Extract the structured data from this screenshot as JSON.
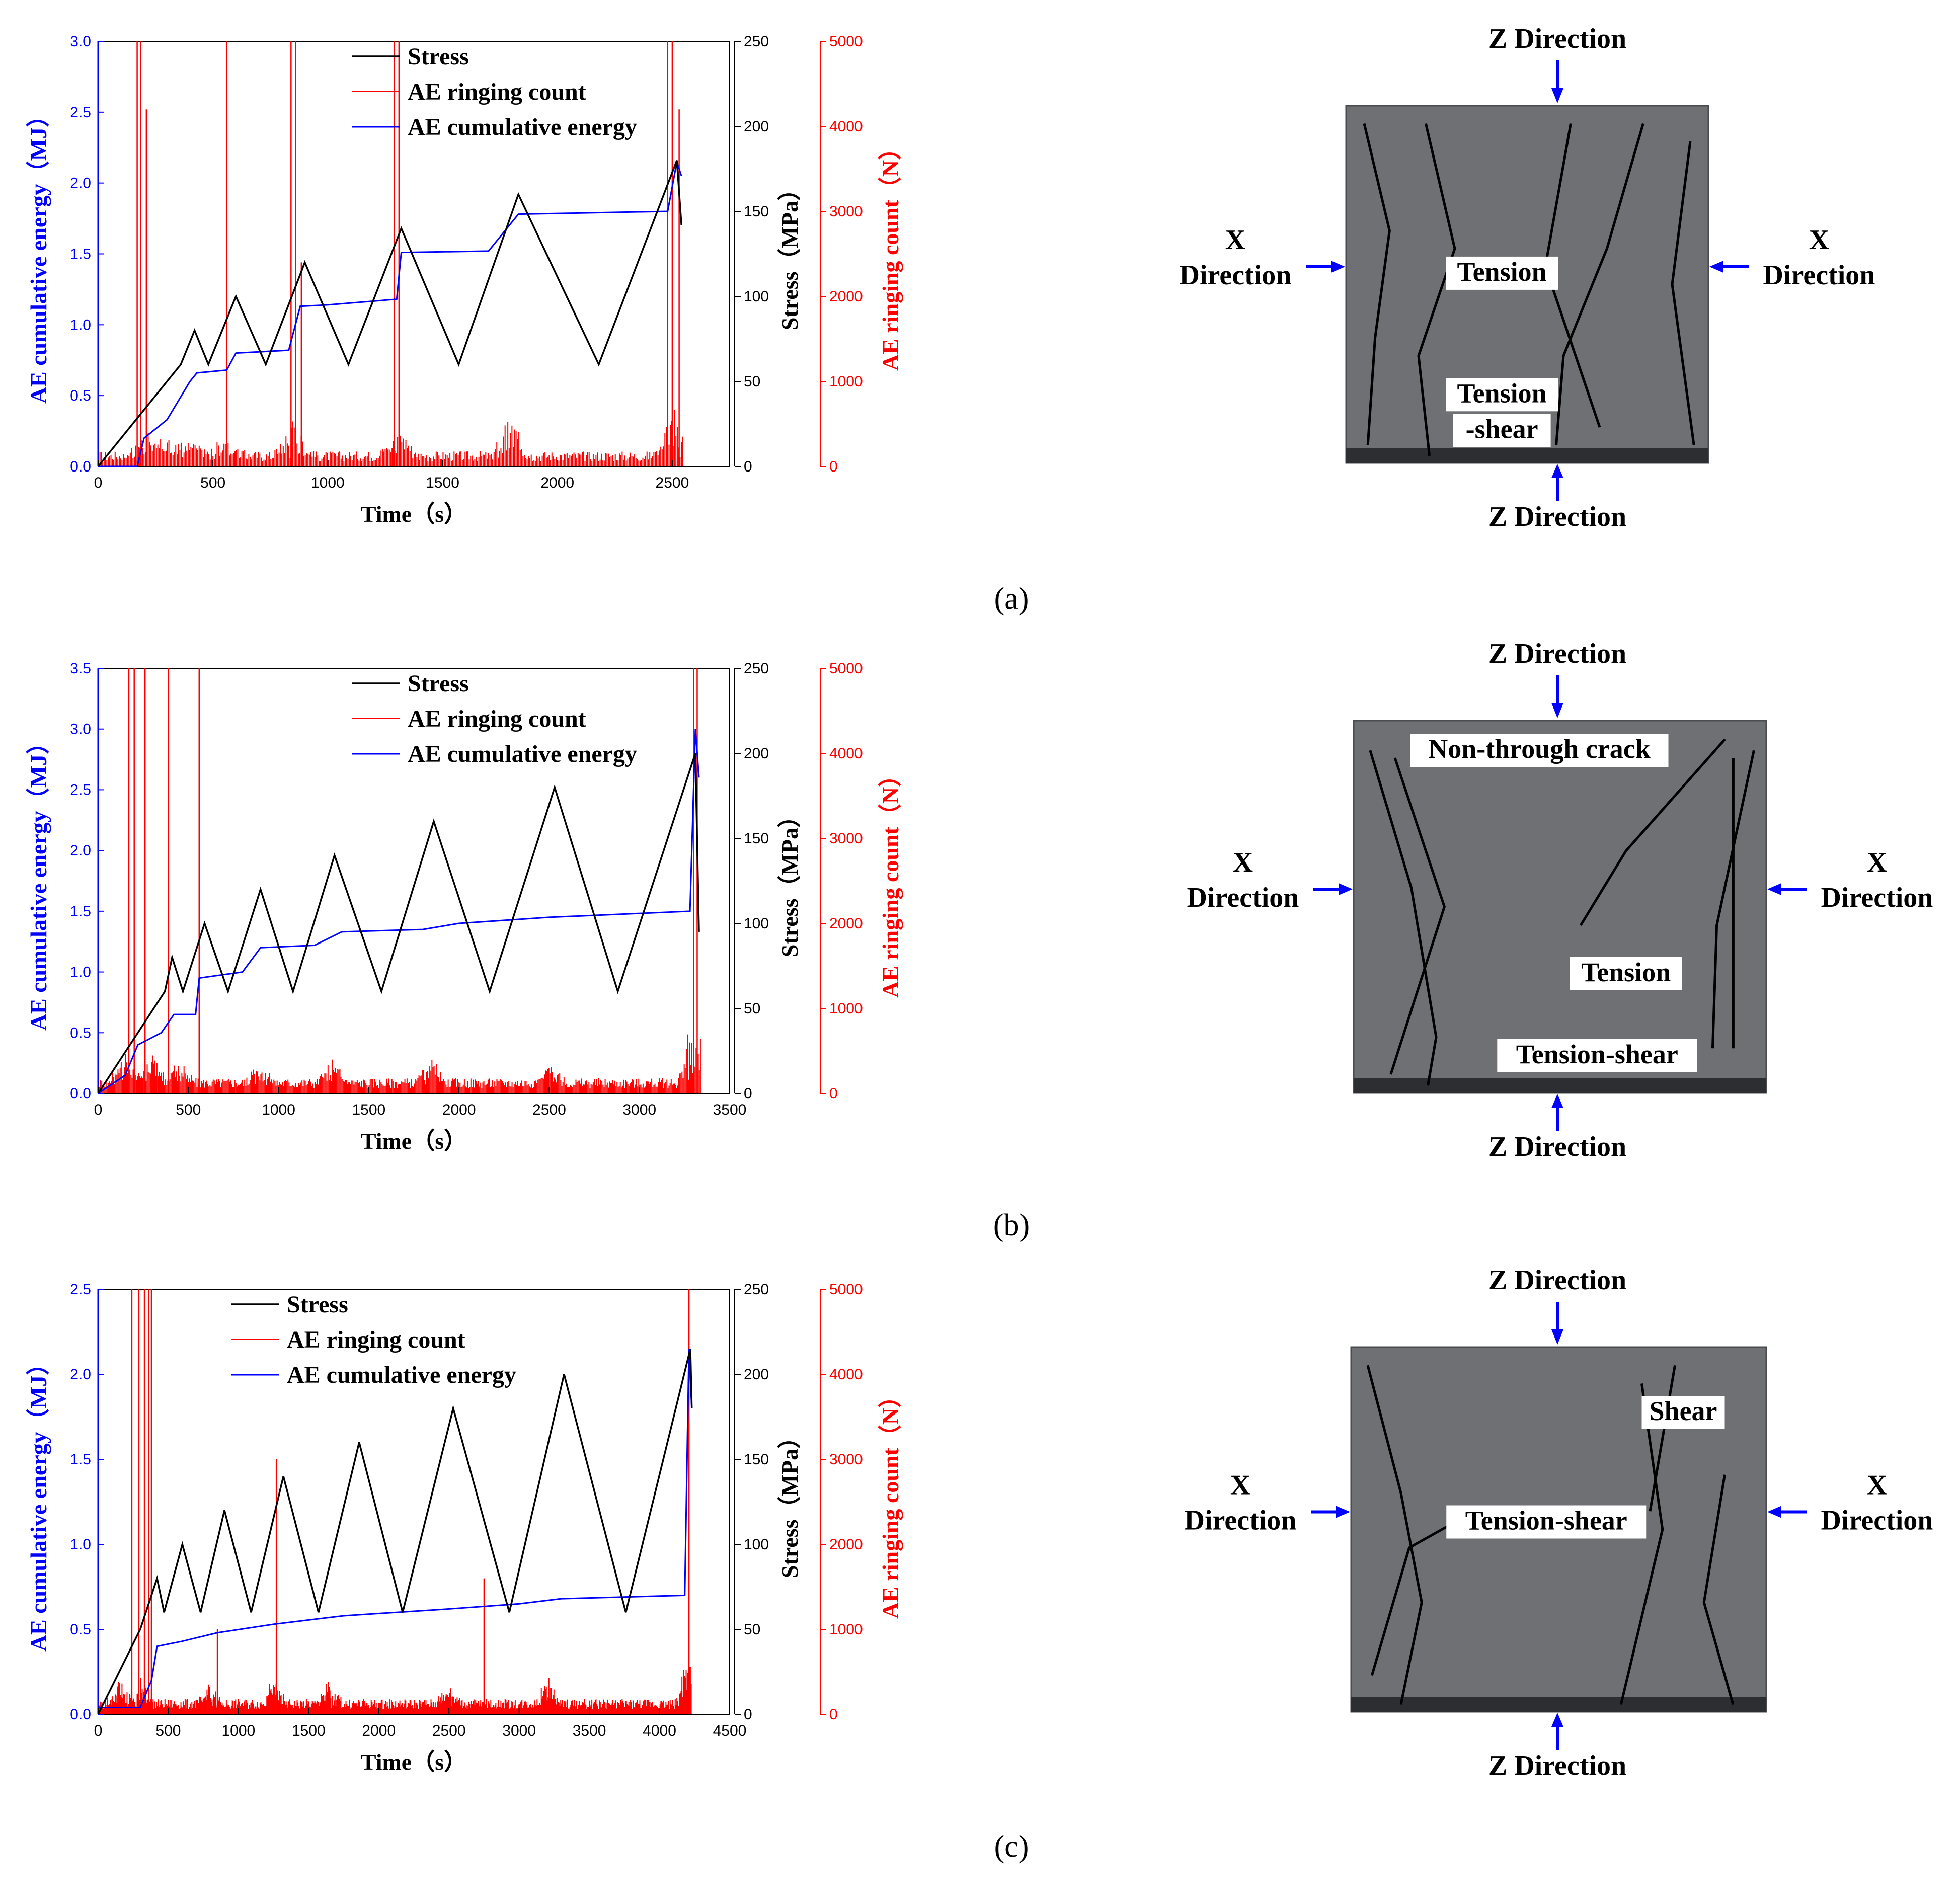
{
  "chart_data": [
    {
      "panel": "(a)",
      "type": "line",
      "xlabel": "Time（s）",
      "ylabel_left": "AE cumulative energy（MJ）",
      "ylabel_right1": "Stress（MPa）",
      "ylabel_right2": "AE ringing count（N）",
      "xlim": [
        0,
        2750
      ],
      "xticks": [
        0,
        500,
        1000,
        1500,
        2000,
        2500
      ],
      "ylim_left": [
        0,
        3.0
      ],
      "yticks_left": [
        0.0,
        0.5,
        1.0,
        1.5,
        2.0,
        2.5,
        3.0
      ],
      "ylim_right1": [
        0,
        250
      ],
      "yticks_right1": [
        0,
        50,
        100,
        150,
        200,
        250
      ],
      "ylim_right2": [
        0,
        5000
      ],
      "yticks_right2": [
        0,
        1000,
        2000,
        3000,
        4000,
        5000
      ],
      "legend": [
        "Stress",
        "AE ringing count",
        "AE cumulative energy"
      ],
      "series": [
        {
          "name": "Stress",
          "color": "#000000",
          "x": [
            0,
            360,
            420,
            480,
            600,
            730,
            900,
            1090,
            1320,
            1570,
            1830,
            2180,
            2520,
            2540
          ],
          "y": [
            0,
            60,
            80,
            60,
            100,
            60,
            120,
            60,
            140,
            60,
            160,
            60,
            180,
            142
          ]
        },
        {
          "name": "AE cumulative energy",
          "color": "#0000ff",
          "x": [
            0,
            170,
            200,
            300,
            400,
            430,
            560,
            600,
            830,
            880,
            1000,
            1300,
            1320,
            1700,
            1790,
            1830,
            2480,
            2520,
            2540
          ],
          "y": [
            0,
            0.0,
            0.2,
            0.33,
            0.6,
            0.66,
            0.68,
            0.8,
            0.82,
            1.13,
            1.14,
            1.18,
            1.51,
            1.52,
            1.7,
            1.78,
            1.8,
            2.15,
            2.05
          ]
        },
        {
          "name": "AE ringing count",
          "color": "#ff0000",
          "spikes_x": [
            170,
            185,
            210,
            560,
            840,
            860,
            885,
            1290,
            1310,
            2480,
            2500,
            2530
          ],
          "spikes_y": [
            5000,
            5000,
            4200,
            5000,
            5000,
            5000,
            2400,
            5000,
            5000,
            5000,
            5000,
            4200
          ],
          "bursts_x": [
            200,
            300,
            400,
            560,
            850,
            1300,
            1800,
            2500
          ],
          "bursts_y": [
            300,
            220,
            200,
            220,
            450,
            350,
            480,
            600
          ]
        }
      ]
    },
    {
      "panel": "(b)",
      "type": "line",
      "xlabel": "Time（s）",
      "ylabel_left": "AE cumulative energy（MJ）",
      "ylabel_right1": "Stress（MPa）",
      "ylabel_right2": "AE ringing count（N）",
      "xlim": [
        0,
        3500
      ],
      "xticks": [
        0,
        500,
        1000,
        1500,
        2000,
        2500,
        3000,
        3500
      ],
      "ylim_left": [
        0,
        3.5
      ],
      "yticks_left": [
        0.0,
        0.5,
        1.0,
        1.5,
        2.0,
        2.5,
        3.0,
        3.5
      ],
      "ylim_right1": [
        0,
        250
      ],
      "yticks_right1": [
        0,
        50,
        100,
        150,
        200,
        250
      ],
      "ylim_right2": [
        0,
        5000
      ],
      "yticks_right2": [
        0,
        1000,
        2000,
        3000,
        4000,
        5000
      ],
      "legend": [
        "Stress",
        "AE ringing count",
        "AE cumulative energy"
      ],
      "series": [
        {
          "name": "Stress",
          "color": "#000000",
          "x": [
            0,
            370,
            410,
            470,
            590,
            720,
            900,
            1080,
            1310,
            1570,
            1860,
            2170,
            2530,
            2880,
            3310,
            3330
          ],
          "y": [
            0,
            60,
            80,
            60,
            100,
            60,
            120,
            60,
            140,
            60,
            160,
            60,
            180,
            60,
            200,
            95
          ]
        },
        {
          "name": "AE cumulative energy",
          "color": "#0000ff",
          "x": [
            0,
            150,
            220,
            350,
            420,
            540,
            560,
            800,
            900,
            1200,
            1350,
            1800,
            2000,
            2500,
            3280,
            3310,
            3330
          ],
          "y": [
            0,
            0.15,
            0.4,
            0.5,
            0.65,
            0.65,
            0.95,
            1.0,
            1.2,
            1.22,
            1.33,
            1.35,
            1.4,
            1.45,
            1.5,
            3.0,
            2.6
          ]
        },
        {
          "name": "AE ringing count",
          "color": "#ff0000",
          "spikes_x": [
            170,
            200,
            260,
            390,
            560,
            3300,
            3320
          ],
          "spikes_y": [
            5000,
            5000,
            5000,
            5000,
            5000,
            5000,
            5000
          ],
          "bursts_x": [
            150,
            300,
            450,
            900,
            1300,
            1850,
            2500,
            3300
          ],
          "bursts_y": [
            500,
            400,
            300,
            350,
            280,
            300,
            250,
            900
          ]
        }
      ]
    },
    {
      "panel": "(c)",
      "type": "line",
      "xlabel": "Time（s）",
      "ylabel_left": "AE cumulative energy（MJ）",
      "ylabel_right1": "Stress（MPa）",
      "ylabel_right2": "AE ringing count（N）",
      "xlim": [
        0,
        4500
      ],
      "xticks": [
        0,
        500,
        1000,
        1500,
        2000,
        2500,
        3000,
        3500,
        4000,
        4500
      ],
      "ylim_left": [
        0,
        2.5
      ],
      "yticks_left": [
        0.0,
        0.5,
        1.0,
        1.5,
        2.0,
        2.5
      ],
      "ylim_right1": [
        0,
        250
      ],
      "yticks_right1": [
        0,
        50,
        100,
        150,
        200,
        250
      ],
      "ylim_right2": [
        0,
        5000
      ],
      "yticks_right2": [
        0,
        1000,
        2000,
        3000,
        4000,
        5000
      ],
      "legend": [
        "Stress",
        "AE ringing count",
        "AE cumulative energy"
      ],
      "series": [
        {
          "name": "Stress",
          "color": "#000000",
          "x": [
            0,
            300,
            420,
            470,
            600,
            730,
            900,
            1090,
            1320,
            1570,
            1860,
            2170,
            2530,
            2930,
            3320,
            3760,
            4220,
            4230
          ],
          "y": [
            0,
            50,
            80,
            60,
            100,
            60,
            120,
            60,
            140,
            60,
            160,
            60,
            180,
            60,
            200,
            60,
            215,
            180
          ]
        },
        {
          "name": "AE cumulative energy",
          "color": "#0000ff",
          "x": [
            0,
            300,
            380,
            420,
            600,
            850,
            1250,
            1750,
            2500,
            3000,
            3300,
            4180,
            4210,
            4230
          ],
          "y": [
            0.04,
            0.04,
            0.2,
            0.4,
            0.43,
            0.48,
            0.53,
            0.58,
            0.62,
            0.65,
            0.68,
            0.7,
            2.15,
            1.8
          ]
        },
        {
          "name": "AE ringing count",
          "color": "#ff0000",
          "spikes_x": [
            240,
            290,
            330,
            360,
            380,
            850,
            1270,
            2750,
            4210
          ],
          "spikes_y": [
            5000,
            5000,
            5000,
            5000,
            5000,
            1000,
            3000,
            1600,
            5000
          ],
          "bursts_x": [
            150,
            300,
            800,
            1250,
            1650,
            2500,
            3200,
            4200
          ],
          "bursts_y": [
            300,
            350,
            250,
            300,
            280,
            300,
            350,
            600
          ]
        }
      ]
    }
  ],
  "photos": [
    {
      "panel": "(a)",
      "z_top": "Z Direction",
      "z_bottom": "Z Direction",
      "x_left_line1": "X",
      "x_left_line2": "Direction",
      "x_right_line1": "X",
      "x_right_line2": "Direction",
      "annotations": [
        "Tension",
        "Tension",
        "-shear"
      ]
    },
    {
      "panel": "(b)",
      "z_top": "Z Direction",
      "z_bottom": "Z Direction",
      "x_left_line1": "X",
      "x_left_line2": "Direction",
      "x_right_line1": "X",
      "x_right_line2": "Direction",
      "annotations": [
        "Non-through crack",
        "Tension",
        "Tension-shear"
      ]
    },
    {
      "panel": "(c)",
      "z_top": "Z Direction",
      "z_bottom": "Z Direction",
      "x_left_line1": "X",
      "x_left_line2": "Direction",
      "x_right_line1": "X",
      "x_right_line2": "Direction",
      "annotations": [
        "Shear",
        "Tension-shear"
      ]
    }
  ],
  "captions": [
    "(a)",
    "(b)",
    "(c)"
  ],
  "colors": {
    "stress": "#000000",
    "energy": "#0000ff",
    "ringing": "#ff0000",
    "rock": "#6e7074"
  }
}
